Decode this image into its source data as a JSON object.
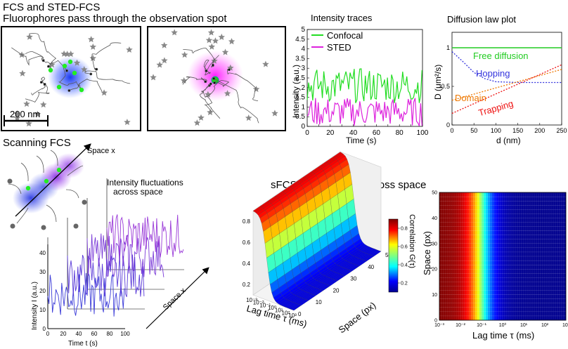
{
  "header": {
    "title_line1": "FCS and STED-FCS",
    "title_line2": "Fluorophores pass through the observation spot",
    "scale_bar": "200 nm"
  },
  "intensity_traces": {
    "title": "Intensity traces",
    "ylabel": "Intensity (a.u.)",
    "xlabel": "Time (s)",
    "x_ticks": [
      "0",
      "10",
      "20",
      "30",
      "40",
      "50",
      "60",
      "70",
      "80",
      "90",
      "100"
    ],
    "y_ticks": [
      "0",
      "0.5",
      "1",
      "1.5",
      "2",
      "2.5",
      "3",
      "3.5",
      "4",
      "4.5",
      "5"
    ],
    "legend": [
      {
        "label": "Confocal",
        "color": "#22dd22"
      },
      {
        "label": "STED",
        "color": "#dd22dd"
      }
    ]
  },
  "diffusion_law": {
    "title": "Diffusion law plot",
    "ylabel": "D (μm²/s)",
    "xlabel": "d (nm)",
    "x_ticks": [
      "0",
      "50",
      "100",
      "150",
      "200",
      "250"
    ],
    "y_ticks": [
      "0",
      "0.5",
      "1"
    ],
    "annotations": [
      {
        "label": "Free diffusion",
        "color": "#22cc22"
      },
      {
        "label": "Hopping",
        "color": "#3333dd"
      },
      {
        "label": "Domain",
        "color": "#ee7700"
      },
      {
        "label": "Trapping",
        "color": "#ee1111"
      }
    ]
  },
  "scanning": {
    "title": "Scanning FCS",
    "axis_label": "Space x",
    "fluct_line1": "Intensity fluctuations",
    "fluct_line2": "across space",
    "ylabel": "Intensity I (a.u.)",
    "xlabel": "Time t (s)",
    "depth_label": "Space x",
    "x_ticks": [
      "0",
      "20",
      "40",
      "60",
      "80",
      "100"
    ],
    "y_ticks": [
      "0",
      "10",
      "20",
      "30",
      "40"
    ]
  },
  "sfcs": {
    "title": "sFCS = information across space",
    "surface_zticks": [
      "0.2",
      "0.4",
      "0.6",
      "0.8"
    ],
    "surface_xticks": [
      "10⁻³",
      "10⁻²",
      "10⁻¹",
      "10⁰",
      "10¹",
      "10²",
      "10³"
    ],
    "surface_yticks": [
      "0",
      "10",
      "20",
      "30",
      "40",
      "50"
    ],
    "surface_xlabel": "Lag time τ (ms)",
    "surface_ylabel": "Space (px)",
    "colorbar_label": "Correlation G(τ)",
    "colorbar_ticks": [
      "0.2",
      "0.4",
      "0.6",
      "0.8"
    ],
    "heatmap_ylabel": "Space (px)",
    "heatmap_xlabel": "Lag time τ (ms)",
    "heatmap_yticks": [
      "0",
      "10",
      "20",
      "30",
      "40",
      "50"
    ],
    "heatmap_xticks": [
      "10⁻³",
      "10⁻²",
      "10⁻¹",
      "10⁰",
      "10¹",
      "10²",
      "10³"
    ]
  },
  "chart_data": [
    {
      "type": "line",
      "title": "Intensity traces",
      "xlabel": "Time (s)",
      "ylabel": "Intensity (a.u.)",
      "xlim": [
        0,
        100
      ],
      "ylim": [
        0,
        5
      ],
      "series": [
        {
          "name": "Confocal",
          "mean": 2.2,
          "range": [
            1.2,
            3.0
          ]
        },
        {
          "name": "STED",
          "mean": 0.7,
          "range": [
            0.0,
            1.5
          ]
        }
      ]
    },
    {
      "type": "line",
      "title": "Diffusion law plot",
      "xlabel": "d (nm)",
      "ylabel": "D (μm²/s)",
      "xlim": [
        0,
        250
      ],
      "ylim": [
        0,
        1.2
      ],
      "series": [
        {
          "name": "Free diffusion",
          "x": [
            0,
            250
          ],
          "y": [
            1.0,
            1.0
          ]
        },
        {
          "name": "Hopping",
          "x": [
            0,
            25,
            50,
            75,
            100,
            150,
            200,
            250
          ],
          "y": [
            0.95,
            0.82,
            0.68,
            0.6,
            0.56,
            0.55,
            0.55,
            0.55
          ]
        },
        {
          "name": "Domain",
          "x": [
            0,
            250
          ],
          "y": [
            0.32,
            0.72
          ]
        },
        {
          "name": "Trapping",
          "x": [
            0,
            250
          ],
          "y": [
            0.15,
            0.78
          ]
        }
      ]
    },
    {
      "type": "heatmap",
      "xlabel": "Lag time τ (ms)",
      "ylabel": "Space (px)",
      "x_range_log10": [
        -3,
        3
      ],
      "ylim": [
        0,
        50
      ],
      "colorbar_range": [
        0.1,
        0.9
      ],
      "G_plateau": 0.9,
      "G_baseline": 0.1,
      "decay_center_log10": -1.0
    }
  ]
}
